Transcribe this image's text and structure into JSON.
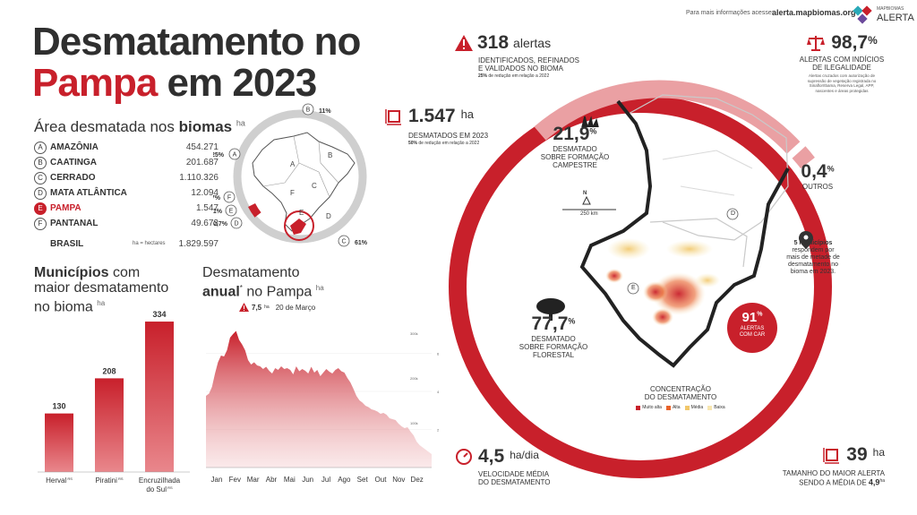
{
  "header": {
    "info_text": "Para mais informações acesse:",
    "info_url": "alerta.mapbiomas.org",
    "logo_line1": "MAPBIOMAS",
    "logo_line2": "ALERTA"
  },
  "title": {
    "line1": "Desmatamento no",
    "line2_highlight": "Pampa",
    "line2_rest": "em 2023"
  },
  "area_section": {
    "heading_plain": "Área desmatada nos",
    "heading_bold": "biomas",
    "unit": "ha",
    "rows": [
      {
        "letter": "A",
        "name": "AMAZÔNIA",
        "value": "454.271",
        "highlight": false
      },
      {
        "letter": "B",
        "name": "CAATINGA",
        "value": "201.687",
        "highlight": false
      },
      {
        "letter": "C",
        "name": "CERRADO",
        "value": "1.110.326",
        "highlight": false
      },
      {
        "letter": "D",
        "name": "MATA ATLÂNTICA",
        "value": "12.094",
        "highlight": false
      },
      {
        "letter": "E",
        "name": "PAMPA",
        "value": "1.547",
        "highlight": true
      },
      {
        "letter": "F",
        "name": "PANTANAL",
        "value": "49.673",
        "highlight": false
      }
    ],
    "total_name": "BRASIL",
    "total_value": "1.829.597",
    "unit_note": "ha = hectares"
  },
  "biome_donut": {
    "labels": [
      {
        "letter": "B",
        "pct": "11%"
      },
      {
        "letter": "A",
        "pct": "25%"
      },
      {
        "letter": "C",
        "pct": "61%"
      },
      {
        "letter": "F",
        "pct": "2,7%"
      },
      {
        "letter": "E",
        "pct": "0,1%"
      },
      {
        "letter": "D",
        "pct": "0,7%"
      }
    ],
    "map_letters": [
      "A",
      "B",
      "C",
      "D",
      "E",
      "F"
    ]
  },
  "municipios": {
    "heading_bold": "Municípios",
    "heading_rest1": "com",
    "heading_rest2": "maior desmatamento",
    "heading_rest3": "no bioma",
    "unit": "ha"
  },
  "annual": {
    "heading_plain": "Desmatamento",
    "heading_bold": "anual",
    "heading_star": "*",
    "heading_rest": "no Pampa",
    "unit": "ha",
    "peak_value": "7,5",
    "peak_unit": "ha",
    "peak_date": "20 de Março"
  },
  "chart_data": [
    {
      "type": "bar",
      "categories": [
        "Herval",
        "Piratini",
        "Encruzilhada do Sul"
      ],
      "category_suffix": "RS",
      "values": [
        130,
        208,
        334
      ],
      "value_labels": [
        "130",
        "208",
        "334"
      ],
      "ylim": [
        0,
        350
      ],
      "color": "#c8202b"
    },
    {
      "type": "area",
      "x_tick_labels": [
        "Jan",
        "Fev",
        "Mar",
        "Abr",
        "Mai",
        "Jun",
        "Jul",
        "Ago",
        "Set",
        "Out",
        "Nov",
        "Dez"
      ],
      "y_left_ticks": [
        "100k",
        "200k",
        "300k"
      ],
      "y_right_ticks": [
        "2",
        "4",
        "6"
      ],
      "y_left_range": [
        0,
        340000
      ],
      "y_right_range": [
        0,
        8
      ],
      "daily_profile": [
        160000,
        165000,
        180000,
        210000,
        235000,
        250000,
        248000,
        262000,
        290000,
        298000,
        305000,
        285000,
        275000,
        262000,
        240000,
        230000,
        235000,
        228000,
        226000,
        220000,
        225000,
        216000,
        210000,
        222000,
        218000,
        226000,
        220000,
        222000,
        218000,
        208000,
        226000,
        215000,
        220000,
        216000,
        210000,
        225000,
        212000,
        218000,
        204000,
        212000,
        220000,
        214000,
        210000,
        218000,
        222000,
        215000,
        212000,
        200000,
        190000,
        176000,
        160000,
        150000,
        145000,
        138000,
        135000,
        130000,
        128000,
        125000,
        120000,
        122000,
        118000,
        110000,
        108000,
        106000,
        98000,
        92000,
        88000,
        90000,
        80000,
        72000,
        58000,
        50000,
        45000,
        40000,
        35000,
        30000
      ],
      "color": "#c8202b"
    }
  ],
  "alerts": {
    "count": "318",
    "count_unit": "alertas",
    "desc1": "IDENTIFICADOS, REFINADOS",
    "desc2": "E VALIDADOS NO BIOMA",
    "note_pct": "25%",
    "note_rest": "de redução em relação a 2022"
  },
  "deforested": {
    "value": "1.547",
    "unit": "ha",
    "desc": "DESMATADOS EM 2023",
    "note_pct": "50%",
    "note_rest": "de redução em relação a 2022"
  },
  "illegal": {
    "value": "98,7",
    "unit": "%",
    "desc1": "ALERTAS COM INDÍCIOS",
    "desc2": "DE ILEGALIDADE",
    "note1": "Alertas cruzados com autorização de",
    "note2": "supressão de vegetação registrada no",
    "note3": "Sinaflor/Ibama, Reserva Legal, APP,",
    "note4": "nascentes e áreas protegidas"
  },
  "campestre": {
    "value": "21,9",
    "unit": "%",
    "desc1": "DESMATADO",
    "desc2": "SOBRE FORMAÇÃO",
    "desc3": "CAMPESTRE"
  },
  "outros": {
    "value": "0,4",
    "unit": "%",
    "desc": "OUTROS"
  },
  "florestal": {
    "value": "77,7",
    "unit": "%",
    "desc1": "DESMATADO",
    "desc2": "SOBRE FORMAÇÃO",
    "desc3": "FLORESTAL"
  },
  "municipios_note": {
    "line1": "5 municípios",
    "line2": "respondem por",
    "line3": "mais de metade de",
    "line4": "desmatamento no",
    "line5": "bioma em 2023."
  },
  "car": {
    "value": "91",
    "unit": "%",
    "desc1": "ALERTAS",
    "desc2": "COM CAR"
  },
  "map": {
    "north": "N",
    "scale": "250 km",
    "label_d": "D",
    "label_e": "E"
  },
  "concentration": {
    "title1": "CONCENTRAÇÃO",
    "title2": "DO DESMATAMENTO",
    "legend": [
      {
        "label": "Muito alta",
        "color": "#c8202b"
      },
      {
        "label": "Alta",
        "color": "#e8622a"
      },
      {
        "label": "Média",
        "color": "#f1c76a"
      },
      {
        "label": "Baixa",
        "color": "#f8e6b0"
      }
    ]
  },
  "speed": {
    "value": "4,5",
    "unit": "ha/dia",
    "desc1": "VELOCIDADE MÉDIA",
    "desc2": "DO DESMATAMENTO"
  },
  "largest": {
    "value": "39",
    "unit": "ha",
    "desc1": "TAMANHO DO MAIOR ALERTA",
    "desc2": "SENDO A MÉDIA DE",
    "avg": "4,9",
    "avg_unit": "ha"
  },
  "colors": {
    "accent": "#c8202b",
    "pale_accent": "#eaa0a3",
    "grey_ring": "#cfcfcf"
  }
}
